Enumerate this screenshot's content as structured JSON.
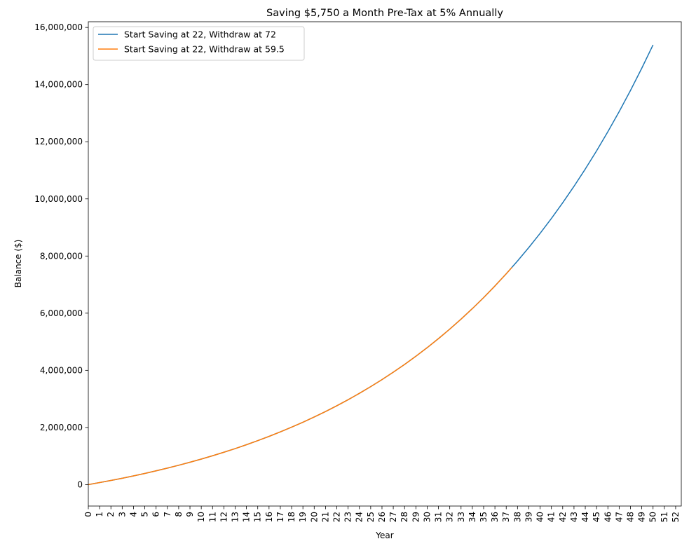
{
  "chart_data": {
    "type": "line",
    "title": "Saving $5,750 a Month Pre-Tax at 5% Annually",
    "xlabel": "Year",
    "ylabel": "Balance ($)",
    "xlim": [
      0,
      52.5
    ],
    "ylim": [
      -750000,
      16200000
    ],
    "grid": false,
    "legend_position": "top-left",
    "x_ticks": [
      0,
      1,
      2,
      3,
      4,
      5,
      6,
      7,
      8,
      9,
      10,
      11,
      12,
      13,
      14,
      15,
      16,
      17,
      18,
      19,
      20,
      21,
      22,
      23,
      24,
      25,
      26,
      27,
      28,
      29,
      30,
      31,
      32,
      33,
      34,
      35,
      36,
      37,
      38,
      39,
      40,
      41,
      42,
      43,
      44,
      45,
      46,
      47,
      48,
      49,
      50,
      51,
      52
    ],
    "x_tick_labels": [
      "0",
      "1",
      "2",
      "3",
      "4",
      "5",
      "6",
      "7",
      "8",
      "9",
      "10",
      "11",
      "12",
      "13",
      "14",
      "15",
      "16",
      "17",
      "18",
      "19",
      "20",
      "21",
      "22",
      "23",
      "24",
      "25",
      "26",
      "27",
      "28",
      "29",
      "30",
      "31",
      "32",
      "33",
      "34",
      "35",
      "36",
      "37",
      "38",
      "39",
      "40",
      "41",
      "42",
      "43",
      "44",
      "45",
      "46",
      "47",
      "48",
      "49",
      "50",
      "51",
      "52"
    ],
    "y_ticks": [
      0,
      2000000,
      4000000,
      6000000,
      8000000,
      10000000,
      12000000,
      14000000,
      16000000
    ],
    "y_tick_labels": [
      "0",
      "2,000,000",
      "4,000,000",
      "6,000,000",
      "8,000,000",
      "10,000,000",
      "12,000,000",
      "14,000,000",
      "16,000,000"
    ],
    "series": [
      {
        "name": "Start Saving at 22, Withdraw at 72",
        "color": "#1f77b4",
        "x": [
          0,
          1,
          2,
          3,
          4,
          5,
          6,
          7,
          8,
          9,
          10,
          11,
          12,
          13,
          14,
          15,
          16,
          17,
          18,
          19,
          20,
          21,
          22,
          23,
          24,
          25,
          26,
          27,
          28,
          29,
          30,
          31,
          32,
          33,
          34,
          35,
          36,
          37,
          38,
          39,
          40,
          41,
          42,
          43,
          44,
          45,
          46,
          47,
          48,
          49,
          50
        ],
        "y": [
          0,
          70604,
          144834,
          222870,
          304902,
          391136,
          481788,
          577087,
          677273,
          782593,
          893310,
          1009701,
          1132058,
          1260687,
          1395907,
          1538057,
          1687489,
          1844580,
          2009721,
          2183326,
          2365828,
          2557684,
          2759371,
          2971394,
          3194283,
          3428595,
          3674917,
          3933862,
          4206079,
          4492246,
          4793079,
          5109331,
          5441793,
          5791295,
          6158708,
          6544951,
          6950982,
          7377826,
          7826518,
          8298177,
          8793989,
          9315219,
          9863157,
          10439197,
          11044766,
          11681393,
          12350626,
          13054162,
          13793744,
          14571229,
          15388574
        ]
      },
      {
        "name": "Start Saving at 22, Withdraw at 59.5",
        "color": "#ff7f0e",
        "x": [
          0,
          1,
          2,
          3,
          4,
          5,
          6,
          7,
          8,
          9,
          10,
          11,
          12,
          13,
          14,
          15,
          16,
          17,
          18,
          19,
          20,
          21,
          22,
          23,
          24,
          25,
          26,
          27,
          28,
          29,
          30,
          31,
          32,
          33,
          34,
          35,
          36,
          37,
          37.5
        ],
        "y": [
          0,
          70604,
          144834,
          222870,
          304902,
          391136,
          481788,
          577087,
          677273,
          782593,
          893310,
          1009701,
          1132058,
          1260687,
          1395907,
          1538057,
          1687489,
          1844580,
          2009721,
          2183326,
          2365828,
          2557684,
          2759371,
          2971394,
          3194283,
          3428595,
          3674917,
          3933862,
          4206079,
          4492246,
          4793079,
          5109331,
          5441793,
          5791295,
          6158708,
          6544951,
          6950982,
          7377826,
          7600000
        ]
      }
    ]
  }
}
